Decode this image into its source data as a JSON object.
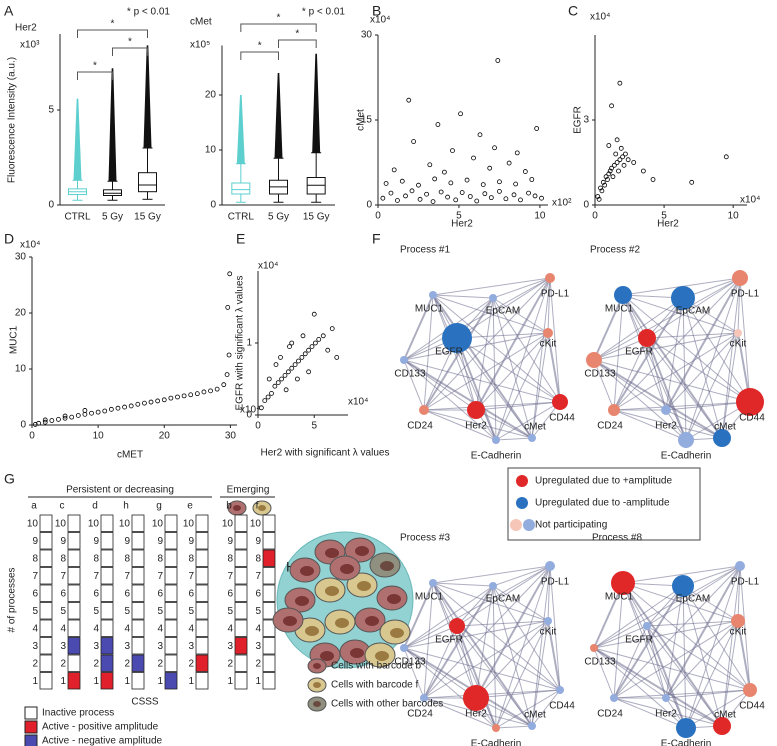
{
  "panel_labels": [
    "A",
    "B",
    "C",
    "D",
    "E",
    "F",
    "G",
    "H"
  ],
  "chart_data": [
    {
      "type": "box",
      "title": "Her2",
      "y_label": "Fluorescence Intensity (a.u.)",
      "y_multiplier": "x10³",
      "categories": [
        "CTRL",
        "5 Gy",
        "15 Gy"
      ],
      "colors": [
        "#5ecfcf",
        "#111111",
        "#111111"
      ],
      "boxes": [
        {
          "whisker_low": 0.25,
          "q1": 0.55,
          "median": 0.7,
          "q3": 0.85,
          "whisker_high": 1.3,
          "outlier_max": 5.6
        },
        {
          "whisker_low": 0.25,
          "q1": 0.5,
          "median": 0.62,
          "q3": 0.8,
          "whisker_high": 1.25,
          "outlier_max": 7.2
        },
        {
          "whisker_low": 0.3,
          "q1": 0.7,
          "median": 1.05,
          "q3": 1.7,
          "whisker_high": 3.0,
          "outlier_max": 8.4
        }
      ],
      "ylim": [
        0,
        9
      ],
      "yticks": [
        0,
        5
      ],
      "significance": [
        "*",
        "*",
        "*"
      ],
      "note": "* p < 0.01"
    },
    {
      "type": "box",
      "title": "cMet",
      "y_multiplier": "x10⁵",
      "categories": [
        "CTRL",
        "5 Gy",
        "15 Gy"
      ],
      "colors": [
        "#5ecfcf",
        "#111111",
        "#111111"
      ],
      "boxes": [
        {
          "whisker_low": 0.5,
          "q1": 2.0,
          "median": 2.8,
          "q3": 4.0,
          "whisker_high": 7.5,
          "outlier_max": 20
        },
        {
          "whisker_low": 0.5,
          "q1": 2.0,
          "median": 3.3,
          "q3": 4.5,
          "whisker_high": 8.5,
          "outlier_max": 24
        },
        {
          "whisker_low": 0.5,
          "q1": 2.0,
          "median": 3.6,
          "q3": 5.0,
          "whisker_high": 9.5,
          "outlier_max": 27.5
        }
      ],
      "ylim": [
        0,
        29
      ],
      "yticks": [
        0,
        10,
        20
      ],
      "significance": [
        "*",
        "*",
        "*"
      ],
      "note": "* p < 0.01"
    },
    {
      "type": "scatter",
      "x_label": "Her2",
      "y_label": "cMet",
      "x_multiplier": "x10²",
      "y_multiplier": "x10⁴",
      "color": "#000000",
      "xlim": [
        0,
        10.5
      ],
      "xticks": [
        0,
        5,
        10
      ],
      "ylim": [
        0,
        30
      ],
      "yticks": [
        0,
        15,
        30
      ],
      "x": [
        0.3,
        0.8,
        1.2,
        1.7,
        2.1,
        2.6,
        3.0,
        3.4,
        3.9,
        4.3,
        4.8,
        5.2,
        5.7,
        6.1,
        6.6,
        7.0,
        7.5,
        7.9,
        8.4,
        8.8,
        9.3,
        9.7,
        10.1,
        0.5,
        1.5,
        2.5,
        3.5,
        4.5,
        5.5,
        6.5,
        7.5,
        8.5,
        9.5,
        1.0,
        3.2,
        4.1,
        5.9,
        6.9,
        8.1,
        9.1,
        2.2,
        4.6,
        6.3,
        7.2,
        8.6,
        7.4,
        1.9,
        3.7,
        5.1,
        9.8
      ],
      "values": [
        1.2,
        2.1,
        0.8,
        1.6,
        2.5,
        1.0,
        1.9,
        0.6,
        2.3,
        1.4,
        0.9,
        2.2,
        1.5,
        0.7,
        2.0,
        1.3,
        2.4,
        1.1,
        1.8,
        0.9,
        2.1,
        1.6,
        1.2,
        3.8,
        4.2,
        3.5,
        4.6,
        3.9,
        4.4,
        3.6,
        4.1,
        3.7,
        4.5,
        6.2,
        7.1,
        5.8,
        8.3,
        6.5,
        7.4,
        5.9,
        11.2,
        9.6,
        12.4,
        10.1,
        9.2,
        25.5,
        18.5,
        14.2,
        16.1,
        13.5
      ]
    },
    {
      "type": "scatter",
      "x_label": "Her2",
      "y_label": "EGFR",
      "x_multiplier": "x10⁴",
      "y_multiplier": "x10⁴",
      "color": "#000000",
      "xlim": [
        0,
        11
      ],
      "xticks": [
        0,
        5,
        10
      ],
      "ylim": [
        0,
        6
      ],
      "yticks": [
        0,
        3
      ],
      "x": [
        0.2,
        0.4,
        0.6,
        0.8,
        1.0,
        1.2,
        1.4,
        1.6,
        1.8,
        2.0,
        2.2,
        0.5,
        0.9,
        1.3,
        1.7,
        2.1,
        0.3,
        0.7,
        1.1,
        1.5,
        1.9,
        2.4,
        1.0,
        1.6,
        2.8,
        3.5,
        4.2,
        7.0,
        9.5,
        1.2,
        1.8
      ],
      "values": [
        0.3,
        0.6,
        0.8,
        1.0,
        1.1,
        1.3,
        1.4,
        1.5,
        1.6,
        1.7,
        1.8,
        0.5,
        0.9,
        1.0,
        1.2,
        1.4,
        0.2,
        0.7,
        1.2,
        1.8,
        2.0,
        1.6,
        2.1,
        2.3,
        1.5,
        1.2,
        0.9,
        0.8,
        1.7,
        3.5,
        4.3
      ]
    },
    {
      "type": "scatter",
      "x_label": "cMET",
      "y_label": "MUC1",
      "x_multiplier": "x10⁴",
      "y_multiplier": "x10⁴",
      "color": "#000000",
      "xlim": [
        0,
        31
      ],
      "xticks": [
        0,
        10,
        20,
        30
      ],
      "ylim": [
        0,
        30
      ],
      "yticks": [
        0,
        10,
        20,
        30
      ],
      "x": [
        0.5,
        1,
        2,
        3,
        4,
        5,
        6,
        7,
        8,
        9,
        10,
        11,
        12,
        13,
        14,
        15,
        16,
        17,
        18,
        19,
        20,
        21,
        22,
        23,
        24,
        25,
        26,
        27,
        28,
        29,
        29.5,
        29.8,
        29.6,
        29.9,
        2,
        5,
        8
      ],
      "values": [
        0.1,
        0.3,
        0.5,
        0.8,
        1.0,
        1.2,
        1.4,
        1.7,
        1.9,
        2.1,
        2.3,
        2.5,
        2.8,
        3.0,
        3.2,
        3.4,
        3.7,
        3.9,
        4.1,
        4.3,
        4.5,
        4.8,
        5.0,
        5.2,
        5.4,
        5.6,
        5.9,
        6.1,
        6.4,
        7.2,
        9.0,
        12.5,
        21.0,
        27.0,
        0.9,
        1.6,
        2.6
      ]
    },
    {
      "type": "scatter",
      "x_label": "Her2 with significant λ values",
      "y_label": "EGFR with significant λ values",
      "x_multiplier": "x10⁴",
      "y_multiplier": "x10⁴",
      "color": "#000000",
      "xlim": [
        0,
        8
      ],
      "xticks": [
        0,
        5
      ],
      "ylim": [
        0,
        2
      ],
      "yticks": [
        0,
        1
      ],
      "x": [
        0.3,
        0.6,
        0.9,
        1.2,
        1.5,
        1.8,
        2.1,
        2.4,
        2.7,
        3.0,
        3.3,
        3.6,
        3.9,
        4.2,
        4.5,
        4.8,
        5.1,
        5.4,
        5.8,
        6.2,
        6.6,
        7.0,
        1.0,
        2.0,
        3.0,
        4.0,
        5.0,
        2.5,
        3.5,
        4.5,
        1.6,
        2.8
      ],
      "values": [
        0.1,
        0.2,
        0.25,
        0.3,
        0.4,
        0.45,
        0.5,
        0.55,
        0.6,
        0.65,
        0.7,
        0.75,
        0.8,
        0.85,
        0.9,
        0.95,
        1.0,
        1.05,
        1.1,
        0.9,
        1.2,
        0.8,
        0.5,
        0.8,
        1.0,
        1.1,
        1.4,
        0.35,
        0.5,
        0.6,
        0.7,
        0.95
      ]
    }
  ],
  "network": {
    "legend": [
      {
        "label": "Upregulated due to +amplitude",
        "colors": [
          "#e02828"
        ]
      },
      {
        "label": "Upregulated due to -amplitude",
        "colors": [
          "#2a72c0"
        ]
      },
      {
        "label": "Not participating",
        "colors": [
          "#f6c6b8",
          "#93acde"
        ]
      }
    ],
    "processes": [
      {
        "title": "Process #1",
        "nodes": [
          {
            "label": "MUC1",
            "color": "#93acde"
          },
          {
            "label": "EpCAM",
            "color": "#93acde"
          },
          {
            "label": "PD-L1",
            "color": "#e8856e"
          },
          {
            "label": "cKit",
            "color": "#e8856e"
          },
          {
            "label": "EGFR",
            "color": "#2a72c0"
          },
          {
            "label": "CD133",
            "color": "#93acde"
          },
          {
            "label": "CD24",
            "color": "#e8856e"
          },
          {
            "label": "Her2",
            "color": "#e02828"
          },
          {
            "label": "CD44",
            "color": "#e02828"
          },
          {
            "label": "E-Cadherin",
            "color": "#93acde"
          },
          {
            "label": "cMet",
            "color": "#93acde"
          }
        ]
      },
      {
        "title": "Process #2",
        "nodes": [
          {
            "label": "MUC1",
            "color": "#2a72c0"
          },
          {
            "label": "EpCAM",
            "color": "#2a72c0"
          },
          {
            "label": "PD-L1",
            "color": "#e8856e"
          },
          {
            "label": "cKit",
            "color": "#f6c6b8"
          },
          {
            "label": "EGFR",
            "color": "#e02828"
          },
          {
            "label": "CD133",
            "color": "#e8856e"
          },
          {
            "label": "CD24",
            "color": "#e8856e"
          },
          {
            "label": "Her2",
            "color": "#93acde"
          },
          {
            "label": "CD44",
            "color": "#e02828"
          },
          {
            "label": "E-Cadherin",
            "color": "#93acde"
          },
          {
            "label": "cMet",
            "color": "#2a72c0"
          }
        ]
      },
      {
        "title": "Process #3",
        "nodes": [
          {
            "label": "MUC1",
            "color": "#93acde"
          },
          {
            "label": "EpCAM",
            "color": "#93acde"
          },
          {
            "label": "PD-L1",
            "color": "#93acde"
          },
          {
            "label": "cKit",
            "color": "#93acde"
          },
          {
            "label": "EGFR",
            "color": "#e02828"
          },
          {
            "label": "CD133",
            "color": "#93acde"
          },
          {
            "label": "CD24",
            "color": "#93acde"
          },
          {
            "label": "Her2",
            "color": "#e02828"
          },
          {
            "label": "CD44",
            "color": "#93acde"
          },
          {
            "label": "E-Cadherin",
            "color": "#e8856e"
          },
          {
            "label": "cMet",
            "color": "#93acde"
          }
        ]
      },
      {
        "title": "Process #8",
        "nodes": [
          {
            "label": "MUC1",
            "color": "#e02828"
          },
          {
            "label": "EpCAM",
            "color": "#2a72c0"
          },
          {
            "label": "PD-L1",
            "color": "#93acde"
          },
          {
            "label": "cKit",
            "color": "#e8856e"
          },
          {
            "label": "EGFR",
            "color": "#93acde"
          },
          {
            "label": "CD133",
            "color": "#e8856e"
          },
          {
            "label": "CD24",
            "color": "#93acde"
          },
          {
            "label": "Her2",
            "color": "#93acde"
          },
          {
            "label": "CD44",
            "color": "#e8856e"
          },
          {
            "label": "E-Cadherin",
            "color": "#2a72c0"
          },
          {
            "label": "cMet",
            "color": "#e02828"
          }
        ]
      }
    ]
  },
  "panel_g": {
    "groups": [
      "Persistent or decreasing",
      "Emerging"
    ],
    "rows": [
      10,
      9,
      8,
      7,
      6,
      5,
      4,
      3,
      2,
      1
    ],
    "columns": [
      {
        "label": "a",
        "cells": [
          0,
          0,
          0,
          0,
          0,
          0,
          0,
          0,
          0,
          0
        ]
      },
      {
        "label": "c",
        "cells": [
          0,
          0,
          0,
          0,
          0,
          0,
          0,
          2,
          0,
          1
        ]
      },
      {
        "label": "d",
        "cells": [
          0,
          0,
          0,
          0,
          0,
          0,
          0,
          2,
          2,
          1
        ]
      },
      {
        "label": "h",
        "cells": [
          0,
          0,
          0,
          0,
          0,
          0,
          0,
          0,
          2,
          0
        ]
      },
      {
        "label": "g",
        "cells": [
          0,
          0,
          0,
          0,
          0,
          0,
          0,
          0,
          0,
          2
        ]
      },
      {
        "label": "e",
        "cells": [
          0,
          0,
          0,
          0,
          0,
          0,
          0,
          0,
          1,
          0
        ]
      },
      {
        "label": "b",
        "cells": [
          0,
          0,
          0,
          0,
          0,
          0,
          0,
          1,
          0,
          0
        ]
      },
      {
        "label": "f",
        "cells": [
          0,
          0,
          1,
          0,
          0,
          0,
          0,
          0,
          0,
          0
        ]
      }
    ],
    "y_label": "# of processes",
    "x_label": "CSSS",
    "legend": [
      {
        "label": "Inactive  process",
        "color": "#ffffff"
      },
      {
        "label": "Active - positive amplitude",
        "color": "#e0202a"
      },
      {
        "label": "Active - negative amplitude",
        "color": "#4a4ab0"
      }
    ]
  },
  "panel_h": {
    "legend": [
      "Cells with barcode b",
      "Cells with barcode f",
      "Cells with other barcodes"
    ]
  }
}
